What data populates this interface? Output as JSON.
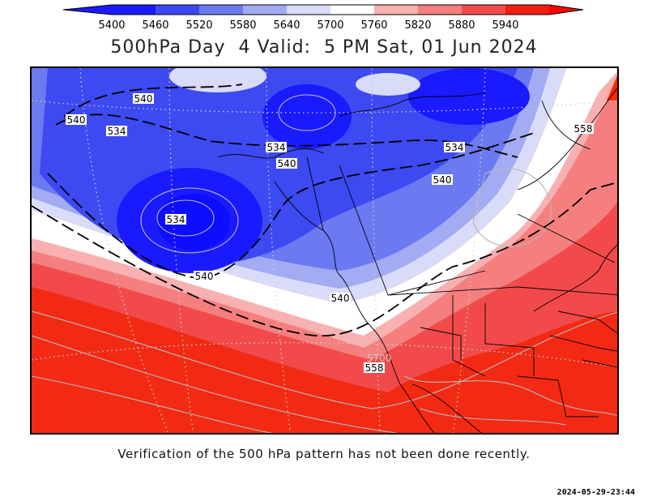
{
  "legend": {
    "values": [
      "5400",
      "5460",
      "5520",
      "5580",
      "5640",
      "5700",
      "5760",
      "5820",
      "5880",
      "5940"
    ],
    "colors": [
      "#1a1aff",
      "#3d4af2",
      "#6b7af0",
      "#a3abf2",
      "#d9dcf8",
      "#ffffff",
      "#f9b0b0",
      "#f57f7f",
      "#f24a4a",
      "#f01f10",
      "#ff0000"
    ]
  },
  "title": "500hPa Day  4 Valid:  5 PM Sat, 01 Jun 2024",
  "map": {
    "contour_labels": [
      "540",
      "540",
      "534",
      "534",
      "540",
      "534",
      "534",
      "540",
      "540",
      "540",
      "558",
      "5700",
      "558"
    ]
  },
  "note": "Verification of the 500 hPa pattern has not been done recently.",
  "timestamp": "2024-05-29-23:44"
}
